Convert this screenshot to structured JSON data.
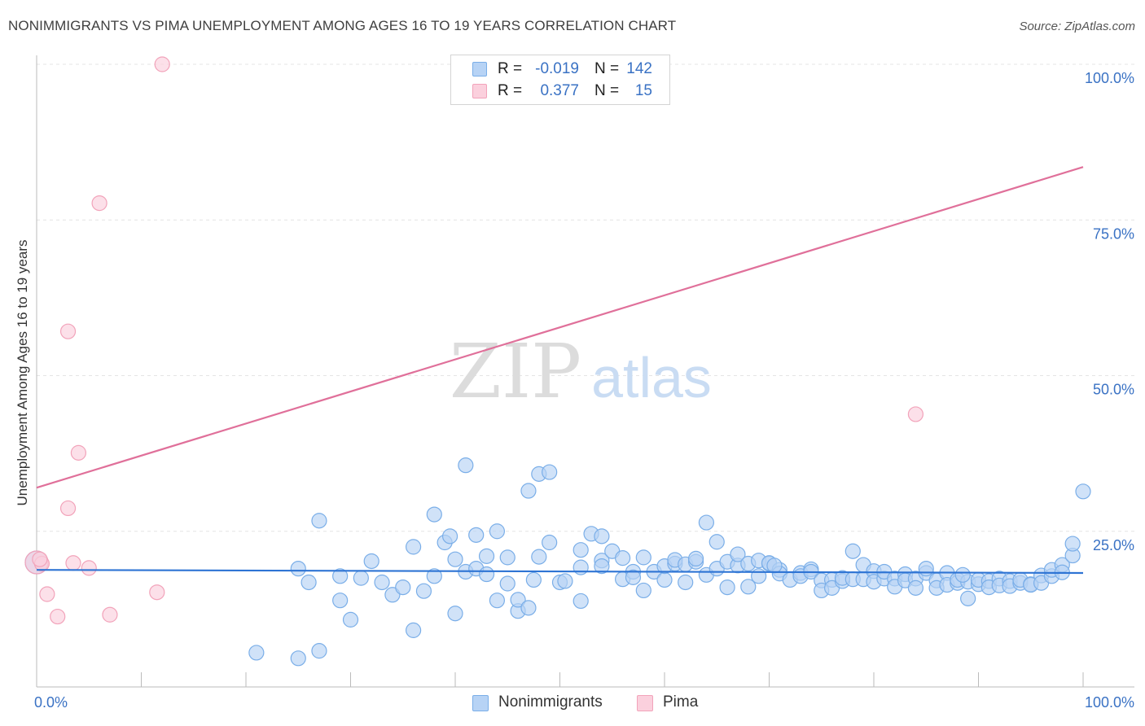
{
  "chart_data": {
    "type": "scatter",
    "title": "NONIMMIGRANTS VS PIMA UNEMPLOYMENT AMONG AGES 16 TO 19 YEARS CORRELATION CHART",
    "source": "Source: ZipAtlas.com",
    "xlabel": "",
    "ylabel": "Unemployment Among Ages 16 to 19 years",
    "xlim": [
      0,
      100
    ],
    "ylim": [
      0,
      100
    ],
    "x_tick_labels": {
      "min": "0.0%",
      "max": "100.0%"
    },
    "y_ticks": [
      {
        "value": 25,
        "label": "25.0%"
      },
      {
        "value": 50,
        "label": "50.0%"
      },
      {
        "value": 75,
        "label": "75.0%"
      },
      {
        "value": 100,
        "label": "100.0%"
      }
    ],
    "watermark": {
      "part1": "ZIP",
      "part2": "atlas"
    },
    "stats": [
      {
        "series": "Nonimmigrants",
        "r_label": "R =",
        "r": "-0.019",
        "n_label": "N =",
        "n": "142"
      },
      {
        "series": "Pima",
        "r_label": "R =",
        "r": "0.377",
        "n_label": "N =",
        "n": "15"
      }
    ],
    "series": [
      {
        "name": "Nonimmigrants",
        "color": "#7aaee8",
        "fill": "#b7d3f5",
        "line_color": "#2e74d4",
        "trend": [
          [
            0,
            18.8
          ],
          [
            100,
            18.3
          ]
        ],
        "points": [
          [
            0,
            20
          ],
          [
            21,
            5.5
          ],
          [
            25,
            4.6
          ],
          [
            25,
            19
          ],
          [
            26,
            16.8
          ],
          [
            27,
            26.7
          ],
          [
            27,
            5.8
          ],
          [
            29,
            13.9
          ],
          [
            29,
            17.8
          ],
          [
            30,
            10.8
          ],
          [
            31,
            17.5
          ],
          [
            32,
            20.2
          ],
          [
            33,
            16.8
          ],
          [
            34,
            14.8
          ],
          [
            35,
            16
          ],
          [
            36,
            22.5
          ],
          [
            36,
            9.1
          ],
          [
            37,
            15.4
          ],
          [
            38,
            17.8
          ],
          [
            38,
            27.7
          ],
          [
            39,
            23.2
          ],
          [
            39.5,
            24.2
          ],
          [
            40,
            11.8
          ],
          [
            40,
            20.5
          ],
          [
            41,
            18.5
          ],
          [
            41,
            35.6
          ],
          [
            42,
            24.4
          ],
          [
            42,
            19
          ],
          [
            43,
            18.1
          ],
          [
            43,
            21
          ],
          [
            44,
            25
          ],
          [
            44,
            13.9
          ],
          [
            45,
            20.8
          ],
          [
            45,
            16.6
          ],
          [
            46,
            12.2
          ],
          [
            46,
            14
          ],
          [
            47,
            12.7
          ],
          [
            47.5,
            17.2
          ],
          [
            47,
            31.5
          ],
          [
            48,
            20.9
          ],
          [
            48,
            34.2
          ],
          [
            49,
            23.2
          ],
          [
            49,
            34.5
          ],
          [
            50,
            16.8
          ],
          [
            50.5,
            17
          ],
          [
            52,
            22
          ],
          [
            52,
            19.2
          ],
          [
            52,
            13.8
          ],
          [
            53,
            24.6
          ],
          [
            54,
            20.3
          ],
          [
            54,
            19.4
          ],
          [
            54,
            24.2
          ],
          [
            55,
            21.8
          ],
          [
            56,
            17.3
          ],
          [
            56,
            20.7
          ],
          [
            57,
            18.5
          ],
          [
            57,
            17.6
          ],
          [
            58,
            15.5
          ],
          [
            58,
            20.8
          ],
          [
            59,
            18.5
          ],
          [
            60,
            17.2
          ],
          [
            60,
            19.4
          ],
          [
            61,
            19.8
          ],
          [
            61,
            20.4
          ],
          [
            62,
            16.8
          ],
          [
            62,
            19.7
          ],
          [
            63,
            20.1
          ],
          [
            63,
            20.6
          ],
          [
            64,
            18
          ],
          [
            64,
            26.4
          ],
          [
            65,
            19
          ],
          [
            65,
            23.3
          ],
          [
            66,
            20.1
          ],
          [
            66,
            16
          ],
          [
            67,
            19.5
          ],
          [
            67,
            21.3
          ],
          [
            68,
            19.8
          ],
          [
            68,
            16.1
          ],
          [
            69,
            20.3
          ],
          [
            69,
            17.8
          ],
          [
            70,
            19.8
          ],
          [
            70,
            19.9
          ],
          [
            71,
            18.8
          ],
          [
            71,
            18.2
          ],
          [
            72,
            17.2
          ],
          [
            73,
            18.3
          ],
          [
            73,
            17.8
          ],
          [
            74,
            18.9
          ],
          [
            74,
            18.5
          ],
          [
            75,
            17.1
          ],
          [
            75,
            15.5
          ],
          [
            76,
            17.2
          ],
          [
            76,
            15.9
          ],
          [
            77,
            17
          ],
          [
            77,
            17.5
          ],
          [
            78,
            17.3
          ],
          [
            78,
            21.8
          ],
          [
            79,
            17.3
          ],
          [
            79,
            19.6
          ],
          [
            80,
            18.6
          ],
          [
            80,
            16.9
          ],
          [
            81,
            17.4
          ],
          [
            81,
            18.5
          ],
          [
            82,
            17.4
          ],
          [
            82,
            16.1
          ],
          [
            83,
            18.1
          ],
          [
            83,
            17.1
          ],
          [
            84,
            17.4
          ],
          [
            84,
            15.9
          ],
          [
            85,
            18.3
          ],
          [
            85,
            19
          ],
          [
            86,
            17.1
          ],
          [
            86,
            15.9
          ],
          [
            87,
            18.3
          ],
          [
            87,
            16.4
          ],
          [
            88,
            16.7
          ],
          [
            88,
            17.2
          ],
          [
            89,
            16.9
          ],
          [
            89,
            14.2
          ],
          [
            90,
            16.5
          ],
          [
            90,
            17.2
          ],
          [
            91,
            17
          ],
          [
            91,
            16
          ],
          [
            92,
            17.4
          ],
          [
            92,
            16.3
          ],
          [
            93,
            17
          ],
          [
            93,
            16.2
          ],
          [
            94,
            16.7
          ],
          [
            94,
            17.2
          ],
          [
            95,
            16.5
          ],
          [
            95,
            16.4
          ],
          [
            96,
            17.9
          ],
          [
            96,
            16.7
          ],
          [
            97,
            17.8
          ],
          [
            97,
            18.8
          ],
          [
            98,
            19.6
          ],
          [
            98,
            18.4
          ],
          [
            99,
            21.1
          ],
          [
            99,
            23
          ],
          [
            100,
            31.4
          ],
          [
            88.5,
            18
          ],
          [
            70.5,
            19.5
          ]
        ]
      },
      {
        "name": "Pima",
        "color": "#f2a3ba",
        "fill": "#fbd0dd",
        "line_color": "#e0709a",
        "trend": [
          [
            0,
            32
          ],
          [
            100,
            83.5
          ]
        ],
        "points": [
          [
            0,
            20
          ],
          [
            0.5,
            19.8
          ],
          [
            1,
            14.9
          ],
          [
            2,
            11.3
          ],
          [
            3,
            28.7
          ],
          [
            3,
            57.1
          ],
          [
            3.5,
            19.9
          ],
          [
            4,
            37.6
          ],
          [
            5,
            19.1
          ],
          [
            6,
            77.7
          ],
          [
            7,
            11.6
          ],
          [
            11.5,
            15.2
          ],
          [
            12,
            100
          ],
          [
            84,
            43.8
          ],
          [
            0.3,
            20.5
          ]
        ]
      }
    ]
  }
}
